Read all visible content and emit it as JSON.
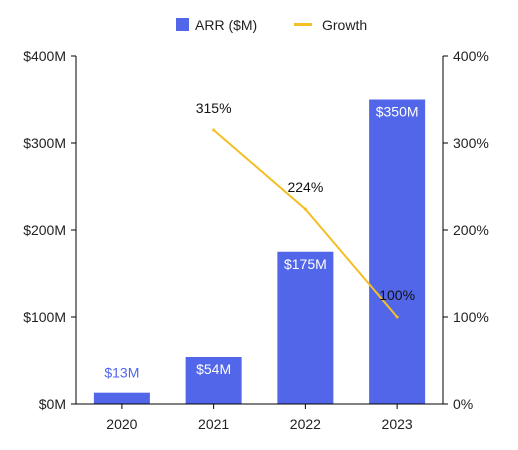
{
  "chart_data": {
    "type": "bar",
    "categories": [
      "2020",
      "2021",
      "2022",
      "2023"
    ],
    "series": [
      {
        "name": "ARR ($M)",
        "type": "bar",
        "axis": "left",
        "values": [
          13,
          54,
          175,
          350
        ],
        "labels": [
          "$13M",
          "$54M",
          "$175M",
          "$350M"
        ]
      },
      {
        "name": "Growth",
        "type": "line",
        "axis": "right",
        "values": [
          null,
          315,
          224,
          100
        ],
        "labels": [
          "",
          "315%",
          "224%",
          "100%"
        ]
      }
    ],
    "ylim": [
      0,
      400
    ],
    "y2lim": [
      0,
      400
    ],
    "yticks": [
      "$0M",
      "$100M",
      "$200M",
      "$300M",
      "$400M"
    ],
    "y2ticks": [
      "0%",
      "100%",
      "200%",
      "300%",
      "400%"
    ],
    "legend_position": "top-center",
    "grid": false,
    "colors": {
      "bar": "#5166e8",
      "line": "#f4be25",
      "axis": "#000000",
      "bar_label_inside": "#ffffff",
      "bar_label_outside": "#5166e8",
      "text": "#222222"
    }
  }
}
